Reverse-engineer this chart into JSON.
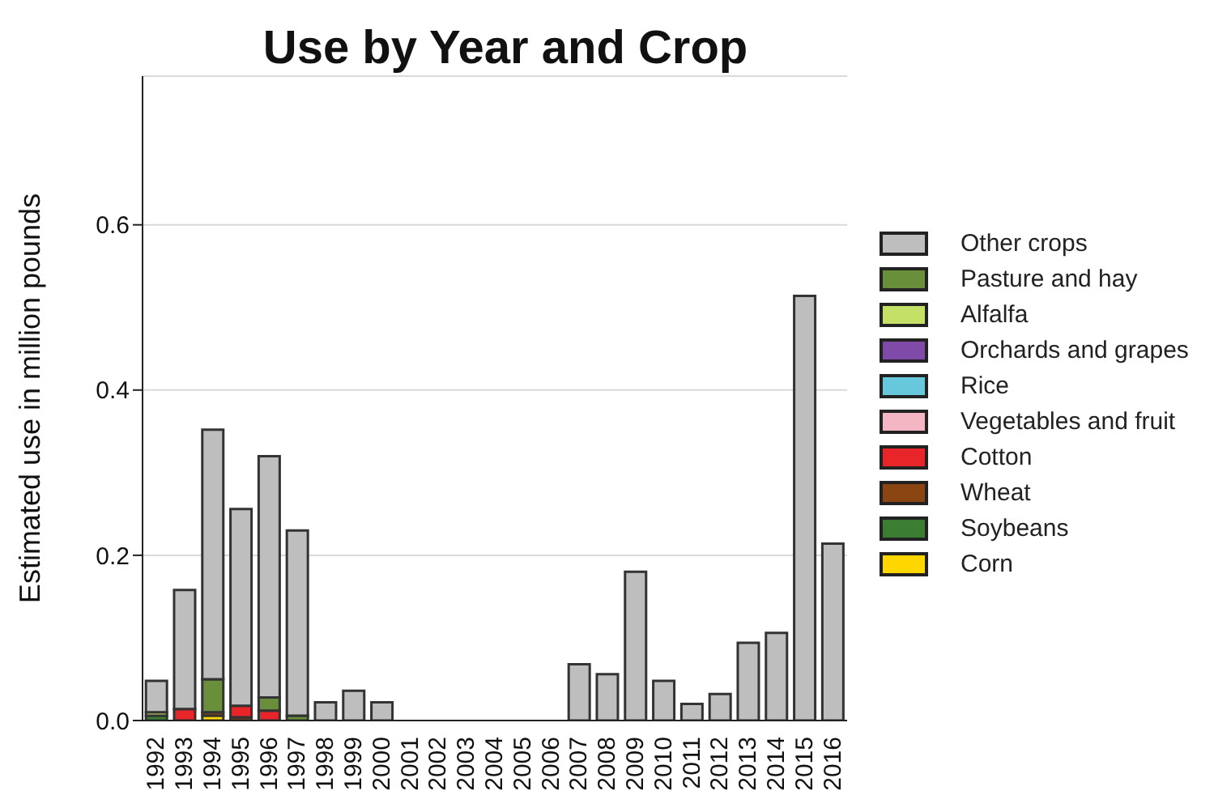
{
  "chart_data": {
    "type": "bar",
    "title": "Use by Year and Crop",
    "ylabel": "Estimated use in million pounds",
    "stacked": true,
    "grid": "y",
    "legend": "right",
    "categories": [
      "1992",
      "1993",
      "1994",
      "1995",
      "1996",
      "1997",
      "1998",
      "1999",
      "2000",
      "2001",
      "2002",
      "2003",
      "2004",
      "2005",
      "2006",
      "2007",
      "2008",
      "2009",
      "2010",
      "2011",
      "2012",
      "2013",
      "2014",
      "2015",
      "2016"
    ],
    "ylim": [
      0,
      0.78
    ],
    "yticks": [
      {
        "value": 0,
        "label": "0.0"
      },
      {
        "value": 0.2,
        "label": "0.2"
      },
      {
        "value": 0.4,
        "label": "0.4"
      },
      {
        "value": 0.6,
        "label": "0.6"
      }
    ],
    "series": [
      {
        "name": "Corn",
        "color": "#ffd700",
        "values": [
          null,
          null,
          0.006,
          null,
          null,
          null,
          null,
          null,
          null,
          null,
          null,
          null,
          null,
          null,
          null,
          null,
          null,
          null,
          null,
          null,
          null,
          null,
          null,
          null,
          null
        ]
      },
      {
        "name": "Soybeans",
        "color": "#3a7d33",
        "values": [
          0.006,
          null,
          null,
          null,
          null,
          null,
          null,
          null,
          null,
          null,
          null,
          null,
          null,
          null,
          null,
          null,
          null,
          null,
          null,
          null,
          null,
          null,
          null,
          null,
          null
        ]
      },
      {
        "name": "Wheat",
        "color": "#8b4513",
        "values": [
          null,
          null,
          0.004,
          0.004,
          null,
          null,
          null,
          null,
          null,
          null,
          null,
          null,
          null,
          null,
          null,
          null,
          null,
          null,
          null,
          null,
          null,
          null,
          null,
          null,
          null
        ]
      },
      {
        "name": "Cotton",
        "color": "#e8262a",
        "values": [
          null,
          0.014,
          null,
          0.014,
          0.012,
          null,
          null,
          null,
          null,
          null,
          null,
          null,
          null,
          null,
          null,
          null,
          null,
          null,
          null,
          null,
          null,
          null,
          null,
          null,
          null
        ]
      },
      {
        "name": "Vegetables and fruit",
        "color": "#f4b6c2",
        "values": [
          null,
          null,
          null,
          null,
          null,
          null,
          null,
          null,
          null,
          null,
          null,
          null,
          null,
          null,
          null,
          null,
          null,
          null,
          null,
          null,
          null,
          null,
          null,
          null,
          null
        ]
      },
      {
        "name": "Rice",
        "color": "#67c8dc",
        "values": [
          null,
          null,
          null,
          null,
          null,
          null,
          null,
          null,
          null,
          null,
          null,
          null,
          null,
          null,
          null,
          null,
          null,
          null,
          null,
          null,
          null,
          null,
          null,
          null,
          null
        ]
      },
      {
        "name": "Orchards and grapes",
        "color": "#7f4aa8",
        "values": [
          null,
          null,
          null,
          null,
          null,
          null,
          null,
          null,
          null,
          null,
          null,
          null,
          null,
          null,
          null,
          null,
          null,
          null,
          null,
          null,
          null,
          null,
          null,
          null,
          null
        ]
      },
      {
        "name": "Alfalfa",
        "color": "#c5e066",
        "values": [
          0.004,
          null,
          null,
          null,
          null,
          null,
          null,
          null,
          null,
          null,
          null,
          null,
          null,
          null,
          null,
          null,
          null,
          null,
          null,
          null,
          null,
          null,
          null,
          null,
          null
        ]
      },
      {
        "name": "Pasture and hay",
        "color": "#6a8f3a",
        "values": [
          null,
          null,
          0.04,
          null,
          0.016,
          0.006,
          null,
          null,
          null,
          null,
          null,
          null,
          null,
          null,
          null,
          null,
          null,
          null,
          null,
          null,
          null,
          null,
          null,
          null,
          null
        ]
      },
      {
        "name": "Other crops",
        "color": "#bebebe",
        "values": [
          0.038,
          0.144,
          0.302,
          0.238,
          0.292,
          0.224,
          0.022,
          0.036,
          0.022,
          0,
          0,
          0,
          0,
          0,
          0,
          0.068,
          0.056,
          0.18,
          0.048,
          0.02,
          0.032,
          0.094,
          0.106,
          0.514,
          0.214
        ]
      }
    ]
  }
}
